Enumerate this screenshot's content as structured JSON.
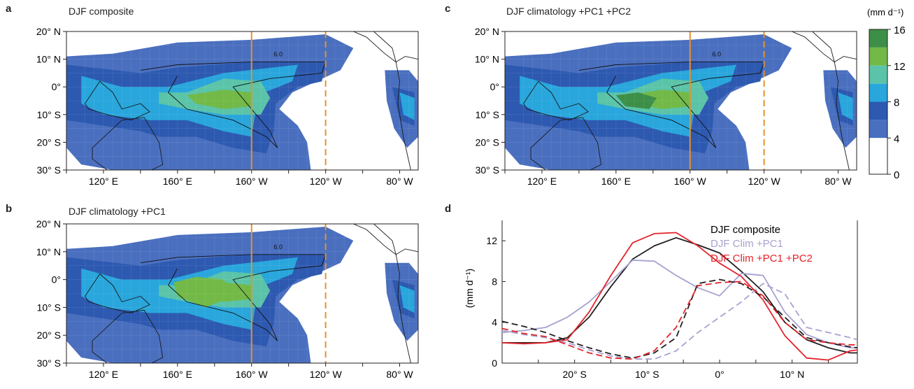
{
  "colors": {
    "level_0_4": "#ffffff",
    "level_4_6": "#4a6fbf",
    "level_6_8": "#2d59b0",
    "level_8_10": "#29a6dc",
    "level_10_12": "#5bc4a8",
    "level_12_14": "#72b947",
    "level_14_16": "#3d8f48",
    "land_outline": "#1a1a1a",
    "meridian_solid": "#e8912c",
    "meridian_dashed": "#e8912c",
    "composite_line": "#231f20",
    "pc1_line": "#a7a2cf",
    "pc12_line": "#e3232b"
  },
  "panels": {
    "a": {
      "label": "a",
      "title": "DJF composite"
    },
    "b": {
      "label": "b",
      "title": "DJF climatology +PC1"
    },
    "c": {
      "label": "c",
      "title": "DJF climatology +PC1 +PC2"
    },
    "d": {
      "label": "d"
    }
  },
  "map_axes": {
    "lat_ticks": [
      "20° N",
      "10° N",
      "0°",
      "10° S",
      "20° S",
      "30° S"
    ],
    "lon_ticks": [
      "120° E",
      "160° E",
      "160° W",
      "120° W",
      "80° W"
    ],
    "contour_label": "6.0"
  },
  "colorbar": {
    "unit": "(mm d⁻¹)",
    "ticks": [
      "16",
      "12",
      "8",
      "4",
      "0"
    ]
  },
  "chart_data": [
    {
      "type": "heatmap",
      "panel": "a",
      "title": "DJF composite",
      "lat_range": [
        -30,
        20
      ],
      "lon_range": [
        100,
        290
      ],
      "marker_lines": [
        {
          "lon": 200,
          "style": "solid"
        },
        {
          "lon": 240,
          "style": "dashed"
        }
      ]
    },
    {
      "type": "heatmap",
      "panel": "b",
      "title": "DJF climatology +PC1",
      "lat_range": [
        -30,
        20
      ],
      "lon_range": [
        100,
        290
      ],
      "marker_lines": [
        {
          "lon": 200,
          "style": "solid"
        },
        {
          "lon": 240,
          "style": "dashed"
        }
      ]
    },
    {
      "type": "heatmap",
      "panel": "c",
      "title": "DJF climatology +PC1 +PC2",
      "lat_range": [
        -30,
        20
      ],
      "lon_range": [
        100,
        290
      ],
      "marker_lines": [
        {
          "lon": 200,
          "style": "solid"
        },
        {
          "lon": 240,
          "style": "dashed"
        }
      ]
    },
    {
      "type": "line",
      "panel": "d",
      "ylabel": "(mm d⁻¹)",
      "xlim": [
        -30,
        19
      ],
      "ylim": [
        0,
        14
      ],
      "x_tick_labels": [
        "20° S",
        "10° S",
        "0°",
        "10° N"
      ],
      "y_tick_labels": [
        "0",
        "4",
        "8",
        "12"
      ],
      "legend": [
        "DJF composite",
        "DJF Clim +PC1",
        "DJF Clim +PC1 +PC2"
      ],
      "legend_position": "top-right",
      "series": [
        {
          "name": "DJF composite",
          "style": "solid",
          "x": [
            -30,
            -27,
            -24,
            -21,
            -18,
            -15,
            -12,
            -9,
            -6,
            -3,
            0,
            3,
            6,
            9,
            12,
            15,
            18,
            19
          ],
          "y": [
            2.0,
            2.0,
            2.0,
            2.5,
            4.5,
            7.5,
            10.2,
            11.5,
            12.3,
            11.6,
            10.8,
            9.0,
            7.0,
            4.0,
            2.3,
            1.5,
            1.0,
            1.0
          ]
        },
        {
          "name": "DJF Clim +PC1",
          "style": "solid",
          "x": [
            -30,
            -27,
            -24,
            -21,
            -18,
            -15,
            -12,
            -9,
            -6,
            -3,
            0,
            3,
            6,
            9,
            12,
            15,
            18,
            19
          ],
          "y": [
            3.0,
            3.2,
            3.5,
            4.5,
            6.0,
            8.0,
            10.1,
            10.0,
            8.6,
            7.4,
            6.6,
            8.8,
            8.6,
            5.0,
            2.8,
            2.0,
            1.5,
            1.5
          ]
        },
        {
          "name": "DJF Clim +PC1 +PC2",
          "style": "solid",
          "x": [
            -30,
            -27,
            -24,
            -21,
            -18,
            -15,
            -12,
            -9,
            -6,
            -3,
            0,
            3,
            6,
            9,
            12,
            15,
            18,
            19
          ],
          "y": [
            2.0,
            1.9,
            2.0,
            2.3,
            5.0,
            8.6,
            11.8,
            12.7,
            12.8,
            11.5,
            9.8,
            8.5,
            6.2,
            2.7,
            0.5,
            0.3,
            1.2,
            1.3
          ]
        },
        {
          "name": "DJF composite",
          "style": "dashed",
          "x": [
            -30,
            -27,
            -24,
            -21,
            -18,
            -15,
            -12,
            -9,
            -6,
            -3,
            0,
            3,
            6,
            9,
            12,
            15,
            18,
            19
          ],
          "y": [
            4.1,
            3.6,
            3.0,
            2.2,
            1.5,
            0.9,
            0.5,
            1.0,
            2.5,
            7.8,
            8.2,
            7.8,
            6.5,
            4.5,
            2.5,
            2.0,
            1.6,
            1.5
          ]
        },
        {
          "name": "DJF Clim +PC1",
          "style": "dashed",
          "x": [
            -30,
            -27,
            -24,
            -21,
            -18,
            -15,
            -12,
            -9,
            -6,
            -3,
            0,
            3,
            6,
            9,
            12,
            15,
            18,
            19
          ],
          "y": [
            3.2,
            2.8,
            2.5,
            2.0,
            1.3,
            0.7,
            0.4,
            0.4,
            1.2,
            3.0,
            4.5,
            6.0,
            7.8,
            6.8,
            3.5,
            3.0,
            2.5,
            2.3
          ]
        },
        {
          "name": "DJF Clim +PC1 +PC2",
          "style": "dashed",
          "x": [
            -30,
            -27,
            -24,
            -21,
            -18,
            -15,
            -12,
            -9,
            -6,
            -3,
            0,
            3,
            6,
            9,
            12,
            15,
            18,
            19
          ],
          "y": [
            3.4,
            2.9,
            2.6,
            1.8,
            1.0,
            0.5,
            0.4,
            1.2,
            3.5,
            7.6,
            7.9,
            8.0,
            6.6,
            4.0,
            2.3,
            2.0,
            1.8,
            1.8
          ]
        }
      ]
    }
  ]
}
